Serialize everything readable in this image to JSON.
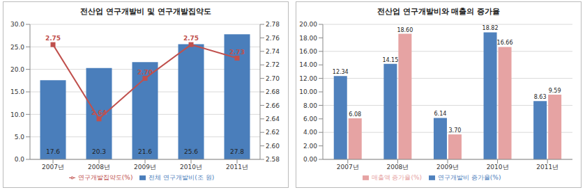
{
  "chart_data": [
    {
      "type": "bar",
      "title": "전산업 연구개발비 및 연구개발집약도",
      "categories": [
        "2007년",
        "2008년",
        "2009년",
        "2010년",
        "2011년"
      ],
      "series": [
        {
          "name": "전체 연구개발비(조 원)",
          "type": "bar",
          "color": "#4a7ebb",
          "values": [
            17.6,
            20.3,
            21.6,
            25.6,
            27.8
          ]
        },
        {
          "name": "연구개발집약도(%)",
          "type": "line",
          "axis": "y2",
          "color": "#c0504d",
          "marker": "square",
          "values": [
            2.75,
            2.64,
            2.7,
            2.75,
            2.73
          ],
          "value_labels": [
            "2.75",
            "2.64",
            "2.70",
            "2.75",
            "2.73"
          ]
        }
      ],
      "ylim": [
        0,
        30
      ],
      "yticks": [
        {
          "value": 0,
          "label": "0.0"
        },
        {
          "value": 5,
          "label": "5.0"
        },
        {
          "value": 10,
          "label": "10.0"
        },
        {
          "value": 15,
          "label": "15.0"
        },
        {
          "value": 20,
          "label": "20.0"
        },
        {
          "value": 25,
          "label": "25.0"
        },
        {
          "value": 30,
          "label": "30.0"
        }
      ],
      "y2lim": [
        2.58,
        2.78
      ],
      "y2ticks": [
        2.58,
        {
          "value": 2.6,
          "label": "2.60"
        },
        2.62,
        2.64,
        2.66,
        2.68,
        {
          "value": 2.7,
          "label": "2.70"
        },
        2.72,
        2.74,
        2.76,
        2.78
      ],
      "grid": true,
      "legend": "bottom",
      "data_labels": true
    },
    {
      "type": "bar",
      "title": "전산업 연구개발비와 매출의 증가율",
      "categories": [
        "2007년",
        "2008년",
        "2009년",
        "2010년",
        "2011년"
      ],
      "series": [
        {
          "name": "연구개발비 증가율(%)",
          "color": "#4f81bd",
          "values": [
            12.34,
            14.15,
            6.14,
            18.82,
            8.63
          ]
        },
        {
          "name": "매출액 증가율(%)",
          "color": "#e6a3a3",
          "values": [
            6.08,
            18.6,
            3.7,
            16.66,
            9.59
          ],
          "value_labels": [
            "6.08",
            "18.60",
            "3.70",
            "16.66",
            "9.59"
          ]
        }
      ],
      "ylim": [
        0,
        20
      ],
      "yticks": [
        {
          "value": 0,
          "label": "0.00"
        },
        {
          "value": 2,
          "label": "2.00"
        },
        {
          "value": 4,
          "label": "4.00"
        },
        {
          "value": 6,
          "label": "6.00"
        },
        {
          "value": 8,
          "label": "8.00"
        },
        {
          "value": 10,
          "label": "10.00"
        },
        {
          "value": 12,
          "label": "12.00"
        },
        {
          "value": 14,
          "label": "14.00"
        },
        {
          "value": 16,
          "label": "16.00"
        },
        {
          "value": 18,
          "label": "18.00"
        },
        {
          "value": 20,
          "label": "20.00"
        }
      ],
      "grid": true,
      "legend": "bottom",
      "data_labels": true
    }
  ]
}
